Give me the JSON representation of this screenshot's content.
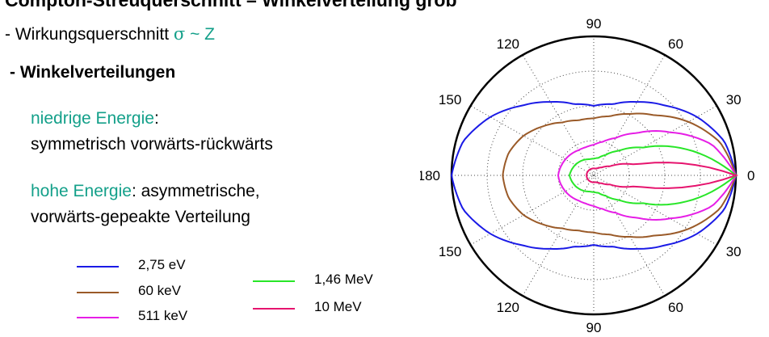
{
  "slide": {
    "title_partial": "Compton-Streuquerschnitt – Winkelverteilung grob",
    "bullet_cross_section": {
      "prefix": "- Wirkungsquerschnitt ",
      "formula_symbol": "σ",
      "formula_rest": " ~ Z"
    },
    "bullet_angular": "- Winkelverteilungen",
    "low_energy": {
      "label": "niedrige Energie",
      "colon": ":",
      "description": "symmetrisch vorwärts-rückwärts"
    },
    "high_energy": {
      "label": "hohe Energie",
      "rest": ":  asymmetrische,",
      "description": "vorwärts-gepeakte Verteilung"
    },
    "colors": {
      "teal": "#14a08a"
    }
  },
  "chart_data": {
    "type": "polar",
    "angle_ticks_upper": [
      "0",
      "30",
      "60",
      "90",
      "120",
      "150",
      "180"
    ],
    "angle_ticks_lower": [
      "30",
      "60",
      "90",
      "120",
      "150"
    ],
    "grid": true,
    "legend_placement": "bottom-left",
    "series": [
      {
        "name": "2,75 eV",
        "color": "#1a1ae6",
        "theta": [
          0,
          15,
          30,
          45,
          60,
          75,
          90,
          105,
          120,
          135,
          150,
          165,
          180
        ],
        "r": [
          1.0,
          0.95,
          0.84,
          0.71,
          0.61,
          0.53,
          0.5,
          0.53,
          0.61,
          0.71,
          0.84,
          0.95,
          1.0
        ]
      },
      {
        "name": "60 keV",
        "color": "#9a5a28",
        "theta": [
          0,
          15,
          30,
          45,
          60,
          75,
          90,
          105,
          120,
          135,
          150,
          165,
          180
        ],
        "r": [
          1.0,
          0.92,
          0.77,
          0.61,
          0.51,
          0.44,
          0.41,
          0.41,
          0.44,
          0.5,
          0.57,
          0.62,
          0.64
        ]
      },
      {
        "name": "511 keV",
        "color": "#e61ee6",
        "theta": [
          0,
          15,
          30,
          45,
          60,
          75,
          90,
          105,
          120,
          135,
          150,
          165,
          180
        ],
        "r": [
          1.0,
          0.86,
          0.62,
          0.43,
          0.31,
          0.25,
          0.22,
          0.21,
          0.21,
          0.22,
          0.23,
          0.24,
          0.25
        ]
      },
      {
        "name": "1,46 MeV",
        "color": "#28e628",
        "theta": [
          0,
          15,
          30,
          45,
          60,
          75,
          90,
          105,
          120,
          135,
          150,
          165,
          180
        ],
        "r": [
          1.0,
          0.7,
          0.4,
          0.25,
          0.17,
          0.13,
          0.12,
          0.12,
          0.13,
          0.14,
          0.15,
          0.16,
          0.17
        ]
      },
      {
        "name": "10 MeV",
        "color": "#e6146e",
        "theta": [
          0,
          15,
          30,
          45,
          60,
          75,
          90,
          105,
          120,
          135,
          150,
          165,
          180
        ],
        "r": [
          1.0,
          0.3,
          0.13,
          0.08,
          0.06,
          0.05,
          0.05,
          0.05,
          0.05,
          0.05,
          0.05,
          0.05,
          0.05
        ]
      }
    ]
  }
}
